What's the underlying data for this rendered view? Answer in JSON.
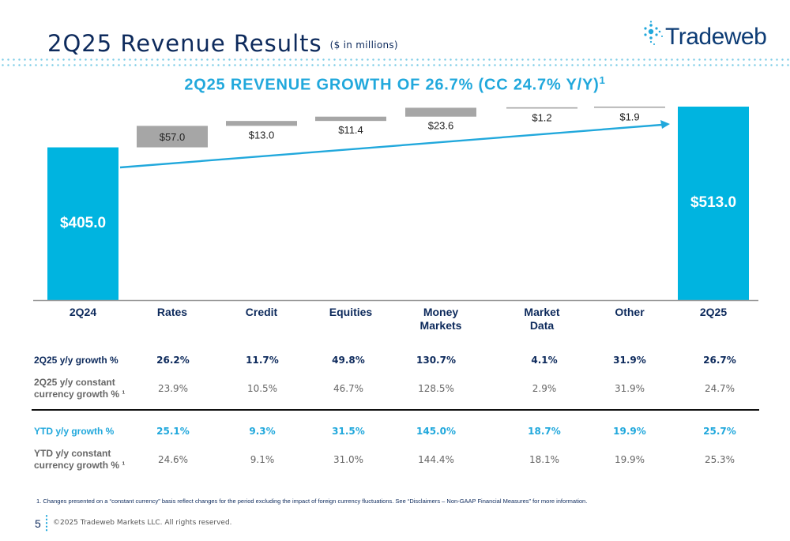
{
  "page": {
    "title": "2Q25 Revenue Results",
    "title_unit": "($ in millions)",
    "logo_text": "Tradeweb",
    "headline": "2Q25 REVENUE GROWTH OF 26.7% (CC 24.7% Y/Y)",
    "headline_sup": "1",
    "footnote": "1.  Changes presented on a “constant currency” basis reflect changes for the period excluding the impact of foreign currency fluctuations. See “Disclaimers – Non-GAAP Financial Measures” for more information.",
    "page_number": "5",
    "copyright": "©2025 Tradeweb Markets LLC. All rights reserved."
  },
  "colors": {
    "navy": "#0d2a5c",
    "cyan": "#00b4e0",
    "gray_bar": "#a6a6a6",
    "accent": "#21a8dc"
  },
  "chart_data": {
    "type": "bar",
    "subtype": "waterfall",
    "categories": [
      "2Q24",
      "Rates",
      "Credit",
      "Equities",
      "Money Markets",
      "Market Data",
      "Other",
      "2Q25"
    ],
    "category_lines": [
      [
        "2Q24"
      ],
      [
        "Rates"
      ],
      [
        "Credit"
      ],
      [
        "Equities"
      ],
      [
        "Money",
        "Markets"
      ],
      [
        "Market",
        "Data"
      ],
      [
        "Other"
      ],
      [
        "2Q25"
      ]
    ],
    "values": [
      405.0,
      57.0,
      13.0,
      11.4,
      23.6,
      1.2,
      1.9,
      513.0
    ],
    "labels": [
      "$405.0",
      "$57.0",
      "$13.0",
      "$11.4",
      "$23.6",
      "$1.2",
      "$1.9",
      "$513.0"
    ],
    "kinds": [
      "total",
      "delta",
      "delta",
      "delta",
      "delta",
      "delta",
      "delta",
      "total"
    ],
    "grid": false,
    "legend": "none",
    "trend_arrow": true
  },
  "table": {
    "rows": [
      {
        "label_lines": [
          "2Q25 y/y growth %"
        ],
        "style": "navy-bold",
        "values": [
          "26.2%",
          "11.7%",
          "49.8%",
          "130.7%",
          "4.1%",
          "31.9%",
          "26.7%"
        ]
      },
      {
        "label_lines": [
          "2Q25 y/y constant",
          "currency growth % ¹"
        ],
        "style": "gray",
        "values": [
          "23.9%",
          "10.5%",
          "46.7%",
          "128.5%",
          "2.9%",
          "31.9%",
          "24.7%"
        ]
      },
      {
        "label_lines": [
          "YTD y/y growth %"
        ],
        "style": "cyan-bold",
        "values": [
          "25.1%",
          "9.3%",
          "31.5%",
          "145.0%",
          "18.7%",
          "19.9%",
          "25.7%"
        ]
      },
      {
        "label_lines": [
          "YTD y/y constant",
          "currency growth % ¹"
        ],
        "style": "gray",
        "values": [
          "24.6%",
          "9.1%",
          "31.0%",
          "144.4%",
          "18.1%",
          "19.9%",
          "25.3%"
        ]
      }
    ]
  }
}
